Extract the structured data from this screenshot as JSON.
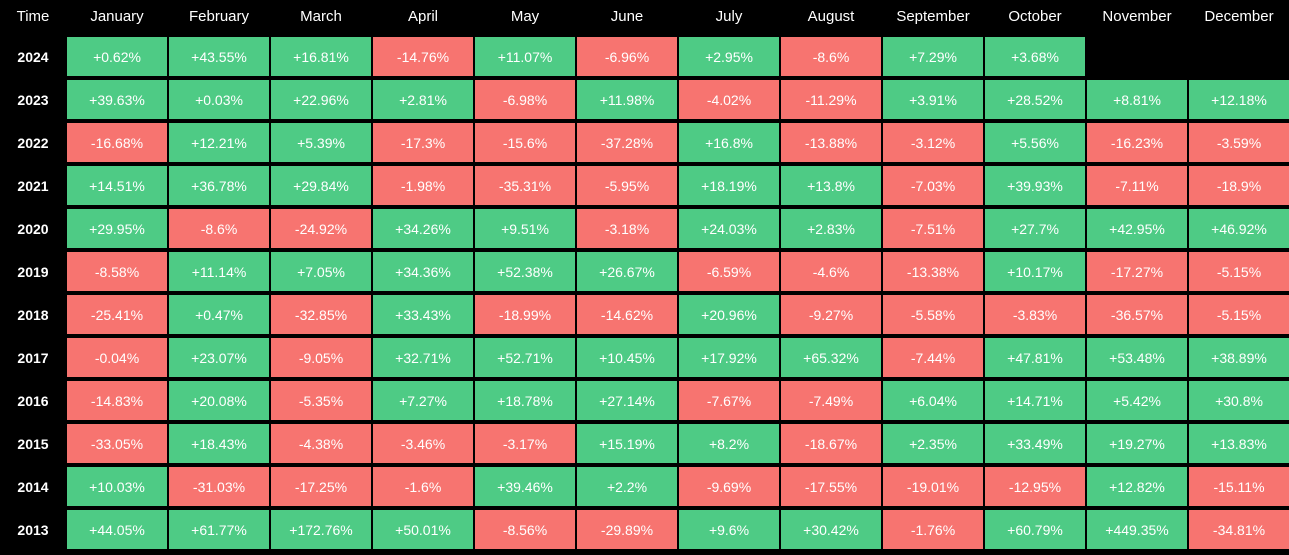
{
  "colors": {
    "background": "#000000",
    "positive": "#4ecb85",
    "negative": "#f77470",
    "text": "#ffffff"
  },
  "header": {
    "time_label": "Time"
  },
  "chart_data": {
    "type": "table",
    "title": "",
    "columns": [
      "January",
      "February",
      "March",
      "April",
      "May",
      "June",
      "July",
      "August",
      "September",
      "October",
      "November",
      "December"
    ],
    "rows": [
      {
        "year": "2024",
        "values": [
          "+0.62%",
          "+43.55%",
          "+16.81%",
          "-14.76%",
          "+11.07%",
          "-6.96%",
          "+2.95%",
          "-8.6%",
          "+7.29%",
          "+3.68%",
          null,
          null
        ]
      },
      {
        "year": "2023",
        "values": [
          "+39.63%",
          "+0.03%",
          "+22.96%",
          "+2.81%",
          "-6.98%",
          "+11.98%",
          "-4.02%",
          "-11.29%",
          "+3.91%",
          "+28.52%",
          "+8.81%",
          "+12.18%"
        ]
      },
      {
        "year": "2022",
        "values": [
          "-16.68%",
          "+12.21%",
          "+5.39%",
          "-17.3%",
          "-15.6%",
          "-37.28%",
          "+16.8%",
          "-13.88%",
          "-3.12%",
          "+5.56%",
          "-16.23%",
          "-3.59%"
        ]
      },
      {
        "year": "2021",
        "values": [
          "+14.51%",
          "+36.78%",
          "+29.84%",
          "-1.98%",
          "-35.31%",
          "-5.95%",
          "+18.19%",
          "+13.8%",
          "-7.03%",
          "+39.93%",
          "-7.11%",
          "-18.9%"
        ]
      },
      {
        "year": "2020",
        "values": [
          "+29.95%",
          "-8.6%",
          "-24.92%",
          "+34.26%",
          "+9.51%",
          "-3.18%",
          "+24.03%",
          "+2.83%",
          "-7.51%",
          "+27.7%",
          "+42.95%",
          "+46.92%"
        ]
      },
      {
        "year": "2019",
        "values": [
          "-8.58%",
          "+11.14%",
          "+7.05%",
          "+34.36%",
          "+52.38%",
          "+26.67%",
          "-6.59%",
          "-4.6%",
          "-13.38%",
          "+10.17%",
          "-17.27%",
          "-5.15%"
        ]
      },
      {
        "year": "2018",
        "values": [
          "-25.41%",
          "+0.47%",
          "-32.85%",
          "+33.43%",
          "-18.99%",
          "-14.62%",
          "+20.96%",
          "-9.27%",
          "-5.58%",
          "-3.83%",
          "-36.57%",
          "-5.15%"
        ]
      },
      {
        "year": "2017",
        "values": [
          "-0.04%",
          "+23.07%",
          "-9.05%",
          "+32.71%",
          "+52.71%",
          "+10.45%",
          "+17.92%",
          "+65.32%",
          "-7.44%",
          "+47.81%",
          "+53.48%",
          "+38.89%"
        ]
      },
      {
        "year": "2016",
        "values": [
          "-14.83%",
          "+20.08%",
          "-5.35%",
          "+7.27%",
          "+18.78%",
          "+27.14%",
          "-7.67%",
          "-7.49%",
          "+6.04%",
          "+14.71%",
          "+5.42%",
          "+30.8%"
        ]
      },
      {
        "year": "2015",
        "values": [
          "-33.05%",
          "+18.43%",
          "-4.38%",
          "-3.46%",
          "-3.17%",
          "+15.19%",
          "+8.2%",
          "-18.67%",
          "+2.35%",
          "+33.49%",
          "+19.27%",
          "+13.83%"
        ]
      },
      {
        "year": "2014",
        "values": [
          "+10.03%",
          "-31.03%",
          "-17.25%",
          "-1.6%",
          "+39.46%",
          "+2.2%",
          "-9.69%",
          "-17.55%",
          "-19.01%",
          "-12.95%",
          "+12.82%",
          "-15.11%"
        ]
      },
      {
        "year": "2013",
        "values": [
          "+44.05%",
          "+61.77%",
          "+172.76%",
          "+50.01%",
          "-8.56%",
          "-29.89%",
          "+9.6%",
          "+30.42%",
          "-1.76%",
          "+60.79%",
          "+449.35%",
          "-34.81%"
        ]
      }
    ]
  }
}
